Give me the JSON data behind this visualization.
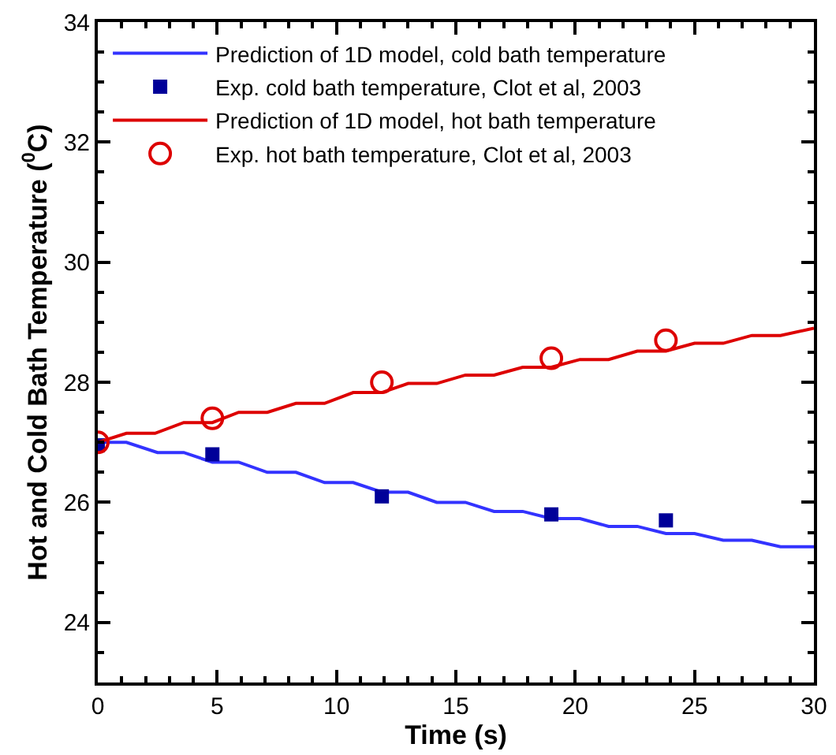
{
  "chart_data": {
    "type": "line",
    "xlabel": "Time (s)",
    "ylabel": "Hot and Cold Bath Temperature ($^{0}$C)",
    "xlim": [
      0,
      30
    ],
    "ylim": [
      23,
      34
    ],
    "xticks": [
      0,
      5,
      10,
      15,
      20,
      25,
      30
    ],
    "yticks": [
      24,
      26,
      28,
      30,
      32,
      34
    ],
    "grid": false,
    "legend": "top left",
    "series": [
      {
        "name": "Prediction of 1D model, cold bath temperature",
        "color": "#3333ff",
        "marker": "none",
        "x": [
          0,
          1.2,
          2.5,
          3.6,
          4.8,
          5.9,
          7.1,
          8.3,
          9.5,
          10.7,
          11.9,
          13,
          14.2,
          15.4,
          16.6,
          17.8,
          19,
          20.2,
          21.4,
          22.6,
          23.8,
          25,
          26.2,
          27.4,
          28.6,
          30
        ],
        "values": [
          27,
          27,
          26.83,
          26.83,
          26.67,
          26.67,
          26.5,
          26.5,
          26.33,
          26.33,
          26.17,
          26.17,
          26,
          26,
          25.85,
          25.85,
          25.73,
          25.73,
          25.6,
          25.6,
          25.48,
          25.48,
          25.37,
          25.37,
          25.26,
          25.26
        ]
      },
      {
        "name": "Exp. cold bath temperature, Clot et al, 2003",
        "color": "#000099",
        "type": "scatter",
        "marker": "square",
        "x": [
          0,
          4.8,
          11.9,
          19,
          23.8
        ],
        "values": [
          26.95,
          26.8,
          26.1,
          25.8,
          25.7
        ]
      },
      {
        "name": "Prediction of 1D model, hot bath temperature",
        "color": "#dd0000",
        "marker": "none",
        "x": [
          0,
          1.2,
          2.4,
          3.6,
          4.8,
          5.9,
          7.1,
          8.3,
          9.5,
          10.7,
          11.9,
          13,
          14.2,
          15.4,
          16.6,
          17.8,
          19,
          20.2,
          21.4,
          22.6,
          23.8,
          25,
          26.2,
          27.4,
          28.6,
          30
        ],
        "values": [
          27,
          27.15,
          27.15,
          27.33,
          27.33,
          27.5,
          27.5,
          27.65,
          27.65,
          27.83,
          27.83,
          27.98,
          27.98,
          28.12,
          28.12,
          28.25,
          28.25,
          28.38,
          28.38,
          28.52,
          28.52,
          28.65,
          28.65,
          28.78,
          28.78,
          28.9
        ]
      },
      {
        "name": "Exp. hot bath temperature, Clot et al, 2003",
        "color": "#dd0000",
        "type": "scatter",
        "marker": "open-circle",
        "x": [
          0,
          4.8,
          11.9,
          19,
          23.8
        ],
        "values": [
          27,
          27.4,
          28.0,
          28.4,
          28.7
        ]
      }
    ]
  }
}
